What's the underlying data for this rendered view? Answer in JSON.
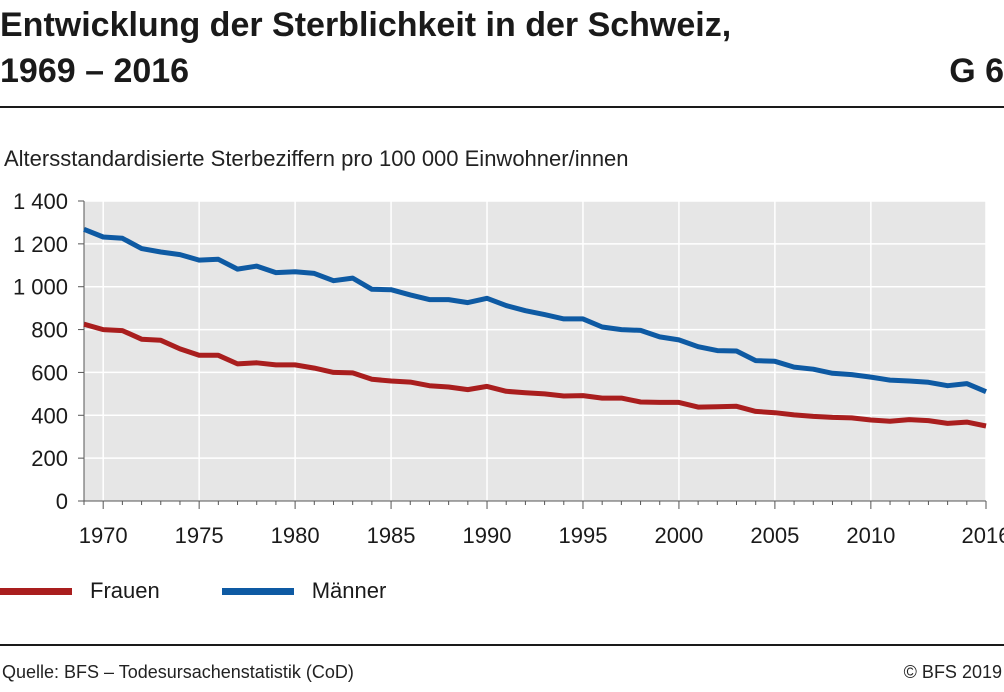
{
  "header": {
    "title_line1": "Entwicklung der Sterblichkeit in der Schweiz,",
    "title_line2": "1969 – 2016",
    "figure_id": "G 6"
  },
  "footer": {
    "source": "Quelle: BFS – Todesursachenstatistik (CoD)",
    "copyright": "© BFS 2019"
  },
  "chart_data": {
    "type": "line",
    "title": "Entwicklung der Sterblichkeit in der Schweiz, 1969 – 2016",
    "subtitle": "Altersstandardisierte Sterbeziffern pro 100 000 Einwohner/innen",
    "xlabel": "",
    "ylabel": "",
    "xlim": [
      1969,
      2016
    ],
    "ylim": [
      0,
      1400
    ],
    "xticks": [
      1970,
      1975,
      1980,
      1985,
      1990,
      1995,
      2000,
      2005,
      2010,
      2016
    ],
    "xtick_labels": [
      "1970",
      "1975",
      "1980",
      "1985",
      "1990",
      "1995",
      "2000",
      "2005",
      "2010",
      "2016"
    ],
    "yticks": [
      0,
      200,
      400,
      600,
      800,
      1000,
      1200,
      1400
    ],
    "ytick_labels": [
      "0",
      "200",
      "400",
      "600",
      "800",
      "1 000",
      "1 200",
      "1 400"
    ],
    "grid": true,
    "legend_position": "bottom",
    "colors": {
      "plot_background": "#e6e6e6",
      "grid": "#ffffff",
      "frauen": "#a91e1e",
      "maenner": "#0e5aa3"
    },
    "x": [
      1969,
      1970,
      1971,
      1972,
      1973,
      1974,
      1975,
      1976,
      1977,
      1978,
      1979,
      1980,
      1981,
      1982,
      1983,
      1984,
      1985,
      1986,
      1987,
      1988,
      1989,
      1990,
      1991,
      1992,
      1993,
      1994,
      1995,
      1996,
      1997,
      1998,
      1999,
      2000,
      2001,
      2002,
      2003,
      2004,
      2005,
      2006,
      2007,
      2008,
      2009,
      2010,
      2011,
      2012,
      2013,
      2014,
      2015,
      2016
    ],
    "series": [
      {
        "name": "Frauen",
        "values": [
          825,
          800,
          795,
          755,
          750,
          710,
          680,
          680,
          640,
          645,
          635,
          635,
          620,
          600,
          598,
          568,
          560,
          555,
          538,
          532,
          520,
          535,
          512,
          505,
          500,
          490,
          492,
          480,
          480,
          462,
          460,
          460,
          438,
          440,
          442,
          418,
          412,
          402,
          395,
          390,
          388,
          378,
          372,
          380,
          375,
          362,
          368,
          350
        ]
      },
      {
        "name": "Männer",
        "values": [
          1268,
          1232,
          1226,
          1178,
          1162,
          1150,
          1124,
          1128,
          1082,
          1096,
          1066,
          1070,
          1062,
          1028,
          1040,
          988,
          986,
          962,
          940,
          940,
          926,
          946,
          912,
          888,
          870,
          850,
          850,
          812,
          800,
          796,
          766,
          752,
          720,
          702,
          700,
          655,
          652,
          625,
          615,
          596,
          590,
          578,
          564,
          560,
          554,
          538,
          548,
          510
        ]
      }
    ]
  }
}
